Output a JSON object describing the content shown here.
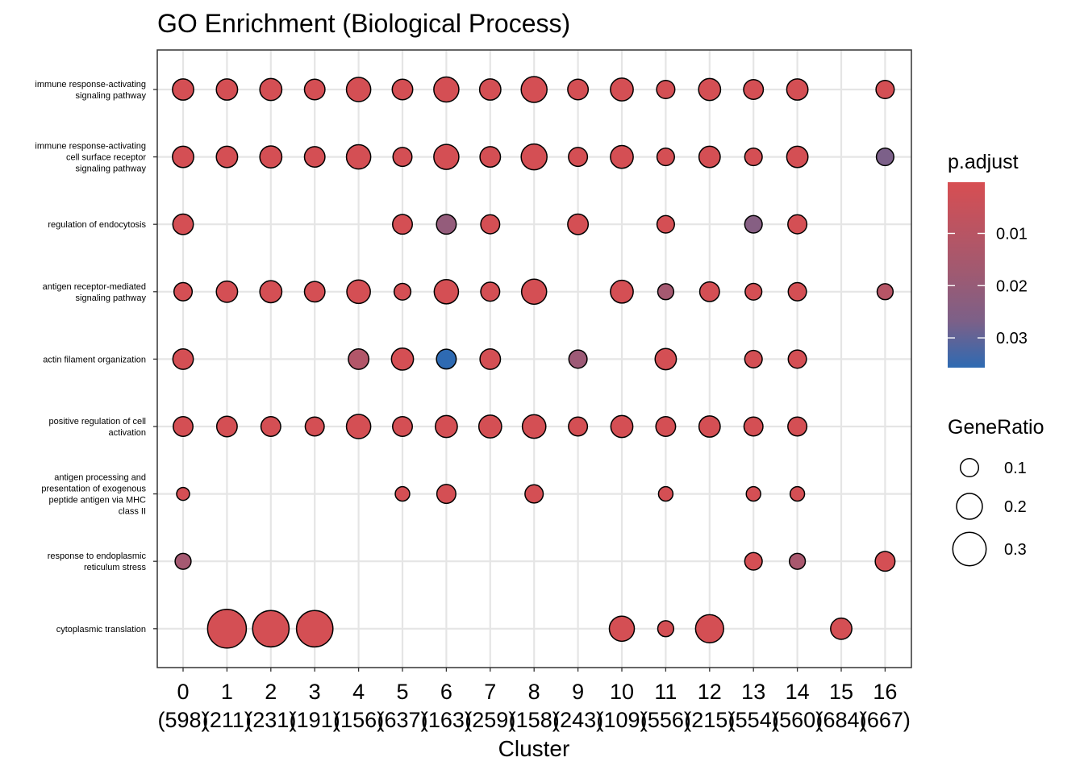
{
  "chart_data": {
    "type": "scatter",
    "title": "GO Enrichment (Biological Process)",
    "xlabel": "Cluster",
    "ylabel": "",
    "x_categories": [
      "0",
      "1",
      "2",
      "3",
      "4",
      "5",
      "6",
      "7",
      "8",
      "9",
      "10",
      "11",
      "12",
      "13",
      "14",
      "15",
      "16"
    ],
    "x_counts": [
      "(598)",
      "(211)",
      "(231)",
      "(191)",
      "(156)",
      "(637)",
      "(163)",
      "(259)",
      "(158)",
      "(243)",
      "(109)",
      "(556)",
      "(215)",
      "(554)",
      "(560)",
      "(684)",
      "(667)"
    ],
    "y_categories": [
      [
        "immune response-activating",
        "signaling pathway"
      ],
      [
        "immune response-activating",
        "cell surface receptor",
        "signaling pathway"
      ],
      [
        "regulation of endocytosis"
      ],
      [
        "antigen receptor-mediated",
        "signaling pathway"
      ],
      [
        "actin filament organization"
      ],
      [
        "positive regulation of cell",
        "activation"
      ],
      [
        "antigen processing and",
        "presentation of exogenous",
        "peptide antigen via MHC",
        "class II"
      ],
      [
        "response to endoplasmic",
        "reticulum stress"
      ],
      [
        "cytoplasmic translation"
      ]
    ],
    "points": [
      {
        "row": 0,
        "col": 0,
        "ratio": 0.14,
        "p": 0.001
      },
      {
        "row": 0,
        "col": 1,
        "ratio": 0.14,
        "p": 0.001
      },
      {
        "row": 0,
        "col": 2,
        "ratio": 0.15,
        "p": 0.001
      },
      {
        "row": 0,
        "col": 3,
        "ratio": 0.13,
        "p": 0.001
      },
      {
        "row": 0,
        "col": 4,
        "ratio": 0.18,
        "p": 0.001
      },
      {
        "row": 0,
        "col": 5,
        "ratio": 0.13,
        "p": 0.001
      },
      {
        "row": 0,
        "col": 6,
        "ratio": 0.19,
        "p": 0.001
      },
      {
        "row": 0,
        "col": 7,
        "ratio": 0.14,
        "p": 0.001
      },
      {
        "row": 0,
        "col": 8,
        "ratio": 0.2,
        "p": 0.001
      },
      {
        "row": 0,
        "col": 9,
        "ratio": 0.13,
        "p": 0.001
      },
      {
        "row": 0,
        "col": 10,
        "ratio": 0.16,
        "p": 0.001
      },
      {
        "row": 0,
        "col": 11,
        "ratio": 0.1,
        "p": 0.001
      },
      {
        "row": 0,
        "col": 12,
        "ratio": 0.15,
        "p": 0.001
      },
      {
        "row": 0,
        "col": 13,
        "ratio": 0.12,
        "p": 0.001
      },
      {
        "row": 0,
        "col": 14,
        "ratio": 0.14,
        "p": 0.001
      },
      {
        "row": 0,
        "col": 16,
        "ratio": 0.1,
        "p": 0.001
      },
      {
        "row": 1,
        "col": 0,
        "ratio": 0.14,
        "p": 0.001
      },
      {
        "row": 1,
        "col": 1,
        "ratio": 0.14,
        "p": 0.001
      },
      {
        "row": 1,
        "col": 2,
        "ratio": 0.15,
        "p": 0.001
      },
      {
        "row": 1,
        "col": 3,
        "ratio": 0.13,
        "p": 0.001
      },
      {
        "row": 1,
        "col": 4,
        "ratio": 0.18,
        "p": 0.001
      },
      {
        "row": 1,
        "col": 5,
        "ratio": 0.11,
        "p": 0.001
      },
      {
        "row": 1,
        "col": 6,
        "ratio": 0.19,
        "p": 0.001
      },
      {
        "row": 1,
        "col": 7,
        "ratio": 0.13,
        "p": 0.001
      },
      {
        "row": 1,
        "col": 8,
        "ratio": 0.2,
        "p": 0.001
      },
      {
        "row": 1,
        "col": 9,
        "ratio": 0.11,
        "p": 0.001
      },
      {
        "row": 1,
        "col": 10,
        "ratio": 0.16,
        "p": 0.001
      },
      {
        "row": 1,
        "col": 11,
        "ratio": 0.09,
        "p": 0.001
      },
      {
        "row": 1,
        "col": 12,
        "ratio": 0.14,
        "p": 0.001
      },
      {
        "row": 1,
        "col": 13,
        "ratio": 0.09,
        "p": 0.001
      },
      {
        "row": 1,
        "col": 14,
        "ratio": 0.14,
        "p": 0.001
      },
      {
        "row": 1,
        "col": 16,
        "ratio": 0.09,
        "p": 0.021
      },
      {
        "row": 2,
        "col": 0,
        "ratio": 0.13,
        "p": 0.001
      },
      {
        "row": 2,
        "col": 5,
        "ratio": 0.12,
        "p": 0.001
      },
      {
        "row": 2,
        "col": 6,
        "ratio": 0.12,
        "p": 0.016
      },
      {
        "row": 2,
        "col": 7,
        "ratio": 0.11,
        "p": 0.001
      },
      {
        "row": 2,
        "col": 9,
        "ratio": 0.13,
        "p": 0.001
      },
      {
        "row": 2,
        "col": 11,
        "ratio": 0.09,
        "p": 0.001
      },
      {
        "row": 2,
        "col": 13,
        "ratio": 0.09,
        "p": 0.019
      },
      {
        "row": 2,
        "col": 14,
        "ratio": 0.11,
        "p": 0.001
      },
      {
        "row": 3,
        "col": 0,
        "ratio": 0.1,
        "p": 0.001
      },
      {
        "row": 3,
        "col": 1,
        "ratio": 0.14,
        "p": 0.001
      },
      {
        "row": 3,
        "col": 2,
        "ratio": 0.15,
        "p": 0.001
      },
      {
        "row": 3,
        "col": 3,
        "ratio": 0.13,
        "p": 0.001
      },
      {
        "row": 3,
        "col": 4,
        "ratio": 0.17,
        "p": 0.001
      },
      {
        "row": 3,
        "col": 5,
        "ratio": 0.08,
        "p": 0.001
      },
      {
        "row": 3,
        "col": 6,
        "ratio": 0.18,
        "p": 0.001
      },
      {
        "row": 3,
        "col": 7,
        "ratio": 0.11,
        "p": 0.001
      },
      {
        "row": 3,
        "col": 8,
        "ratio": 0.19,
        "p": 0.001
      },
      {
        "row": 3,
        "col": 10,
        "ratio": 0.16,
        "p": 0.001
      },
      {
        "row": 3,
        "col": 11,
        "ratio": 0.07,
        "p": 0.012
      },
      {
        "row": 3,
        "col": 12,
        "ratio": 0.12,
        "p": 0.001
      },
      {
        "row": 3,
        "col": 13,
        "ratio": 0.08,
        "p": 0.001
      },
      {
        "row": 3,
        "col": 14,
        "ratio": 0.1,
        "p": 0.001
      },
      {
        "row": 3,
        "col": 16,
        "ratio": 0.07,
        "p": 0.008
      },
      {
        "row": 4,
        "col": 0,
        "ratio": 0.13,
        "p": 0.001
      },
      {
        "row": 4,
        "col": 4,
        "ratio": 0.13,
        "p": 0.009
      },
      {
        "row": 4,
        "col": 5,
        "ratio": 0.15,
        "p": 0.001
      },
      {
        "row": 4,
        "col": 6,
        "ratio": 0.12,
        "p": 0.036
      },
      {
        "row": 4,
        "col": 7,
        "ratio": 0.13,
        "p": 0.001
      },
      {
        "row": 4,
        "col": 9,
        "ratio": 0.1,
        "p": 0.014
      },
      {
        "row": 4,
        "col": 11,
        "ratio": 0.14,
        "p": 0.001
      },
      {
        "row": 4,
        "col": 13,
        "ratio": 0.09,
        "p": 0.001
      },
      {
        "row": 4,
        "col": 14,
        "ratio": 0.1,
        "p": 0.001
      },
      {
        "row": 5,
        "col": 0,
        "ratio": 0.12,
        "p": 0.001
      },
      {
        "row": 5,
        "col": 1,
        "ratio": 0.13,
        "p": 0.001
      },
      {
        "row": 5,
        "col": 2,
        "ratio": 0.12,
        "p": 0.001
      },
      {
        "row": 5,
        "col": 3,
        "ratio": 0.11,
        "p": 0.001
      },
      {
        "row": 5,
        "col": 4,
        "ratio": 0.18,
        "p": 0.001
      },
      {
        "row": 5,
        "col": 5,
        "ratio": 0.12,
        "p": 0.001
      },
      {
        "row": 5,
        "col": 6,
        "ratio": 0.15,
        "p": 0.001
      },
      {
        "row": 5,
        "col": 7,
        "ratio": 0.16,
        "p": 0.001
      },
      {
        "row": 5,
        "col": 8,
        "ratio": 0.17,
        "p": 0.001
      },
      {
        "row": 5,
        "col": 9,
        "ratio": 0.11,
        "p": 0.001
      },
      {
        "row": 5,
        "col": 10,
        "ratio": 0.15,
        "p": 0.001
      },
      {
        "row": 5,
        "col": 11,
        "ratio": 0.12,
        "p": 0.001
      },
      {
        "row": 5,
        "col": 12,
        "ratio": 0.14,
        "p": 0.001
      },
      {
        "row": 5,
        "col": 13,
        "ratio": 0.11,
        "p": 0.001
      },
      {
        "row": 5,
        "col": 14,
        "ratio": 0.11,
        "p": 0.001
      },
      {
        "row": 6,
        "col": 0,
        "ratio": 0.03,
        "p": 0.001
      },
      {
        "row": 6,
        "col": 5,
        "ratio": 0.05,
        "p": 0.001
      },
      {
        "row": 6,
        "col": 6,
        "ratio": 0.11,
        "p": 0.001
      },
      {
        "row": 6,
        "col": 8,
        "ratio": 0.1,
        "p": 0.001
      },
      {
        "row": 6,
        "col": 11,
        "ratio": 0.05,
        "p": 0.001
      },
      {
        "row": 6,
        "col": 13,
        "ratio": 0.05,
        "p": 0.001
      },
      {
        "row": 6,
        "col": 14,
        "ratio": 0.05,
        "p": 0.001
      },
      {
        "row": 7,
        "col": 0,
        "ratio": 0.07,
        "p": 0.012
      },
      {
        "row": 7,
        "col": 13,
        "ratio": 0.09,
        "p": 0.001
      },
      {
        "row": 7,
        "col": 14,
        "ratio": 0.07,
        "p": 0.011
      },
      {
        "row": 7,
        "col": 16,
        "ratio": 0.12,
        "p": 0.001
      },
      {
        "row": 8,
        "col": 1,
        "ratio": 0.37,
        "p": 0.001
      },
      {
        "row": 8,
        "col": 2,
        "ratio": 0.34,
        "p": 0.001
      },
      {
        "row": 8,
        "col": 3,
        "ratio": 0.34,
        "p": 0.001
      },
      {
        "row": 8,
        "col": 10,
        "ratio": 0.19,
        "p": 0.001
      },
      {
        "row": 8,
        "col": 11,
        "ratio": 0.07,
        "p": 0.001
      },
      {
        "row": 8,
        "col": 12,
        "ratio": 0.23,
        "p": 0.001
      },
      {
        "row": 8,
        "col": 15,
        "ratio": 0.14,
        "p": 0.001
      }
    ],
    "legend_color": {
      "title": "p.adjust",
      "tick_values": [
        0.01,
        0.02,
        0.03
      ],
      "tick_labels": [
        "0.01",
        "0.02",
        "0.03"
      ],
      "p_min": 0.0002,
      "p_max": 0.0357,
      "color_low_p": "#D74E52",
      "color_mid_p": "#8C5E80",
      "color_high_p": "#2E6AB2"
    },
    "legend_size": {
      "title": "GeneRatio",
      "values": [
        0.1,
        0.2,
        0.3
      ],
      "labels": [
        "0.1",
        "0.2",
        "0.3"
      ],
      "ratio_min": 0.03,
      "ratio_max": 0.37
    },
    "grid": true,
    "legend_position": "right"
  }
}
